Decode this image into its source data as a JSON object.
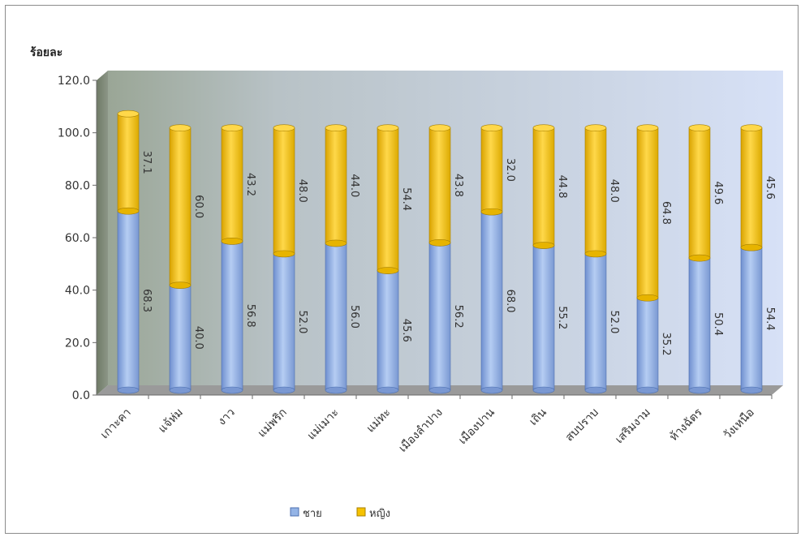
{
  "chart_data": {
    "type": "bar",
    "stacked": true,
    "ylabel": "ร้อยละ",
    "ylim": [
      0,
      120
    ],
    "yticks": [
      "0.0",
      "20.0",
      "40.0",
      "60.0",
      "80.0",
      "100.0",
      "120.0"
    ],
    "categories": [
      "เกาะคา",
      "แจ้ห่ม",
      "งาว",
      "แม่พริก",
      "แม่เมาะ",
      "แม่ทะ",
      "เมืองลำปาง",
      "เมืองปาน",
      "เถิน",
      "สบปราบ",
      "เสริมงาม",
      "ห้างฉัตร",
      "วังเหนือ"
    ],
    "series": [
      {
        "name": "ชาย",
        "values": [
          68.3,
          40.0,
          56.8,
          52.0,
          56.0,
          45.6,
          56.2,
          68.0,
          55.2,
          52.0,
          35.2,
          50.4,
          54.4
        ],
        "labels": [
          "68.3",
          "40.0",
          "56.8",
          "52.0",
          "56.0",
          "45.6",
          "56.2",
          "68.0",
          "55.2",
          "52.0",
          "35.2",
          "50.4",
          "54.4"
        ],
        "color": "#94b4e6"
      },
      {
        "name": "หญิง",
        "values": [
          37.1,
          60.0,
          43.2,
          48.0,
          44.0,
          54.4,
          43.8,
          32.0,
          44.8,
          48.0,
          64.8,
          49.6,
          45.6
        ],
        "labels": [
          "37.1",
          "60.0",
          "43.2",
          "48.0",
          "44.0",
          "54.4",
          "43.8",
          "32.0",
          "44.8",
          "48.0",
          "64.8",
          "49.6",
          "45.6"
        ],
        "color": "#f6c200"
      }
    ],
    "legend": {
      "position": "bottom"
    }
  }
}
